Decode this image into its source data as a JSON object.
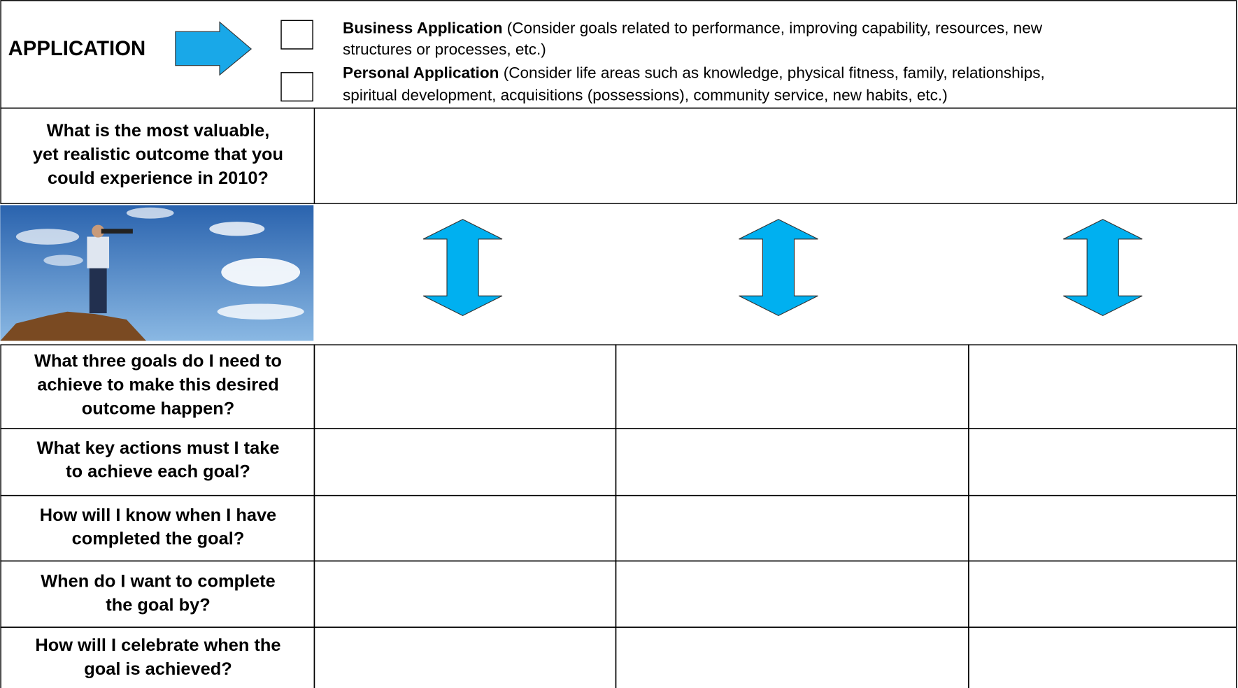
{
  "application": {
    "label": "APPLICATION",
    "business": {
      "title": "Business Application",
      "lines": [
        "(Consider goals related to performance, improving capability, resources, new",
        "structures or processes, etc.)"
      ]
    },
    "personal": {
      "title": "Personal Application",
      "lines": [
        "(Consider life areas such as knowledge, physical fitness, family, relationships,",
        "spiritual development, acquisitions (possessions), community service, new habits, etc.)"
      ]
    }
  },
  "outcome": {
    "question": [
      "What is the most valuable,",
      "yet realistic outcome that you",
      "could experience in 2010?"
    ]
  },
  "goals": {
    "rows": [
      [
        "What three goals do I need to",
        "achieve to make this desired",
        "outcome happen?"
      ],
      [
        "What key actions must I take",
        "to achieve each goal?"
      ],
      [
        "How will I know when I have",
        "completed the goal?"
      ],
      [
        "When do I want to complete",
        "the goal by?"
      ],
      [
        "How will I celebrate when the",
        "goal is achieved?"
      ]
    ]
  }
}
